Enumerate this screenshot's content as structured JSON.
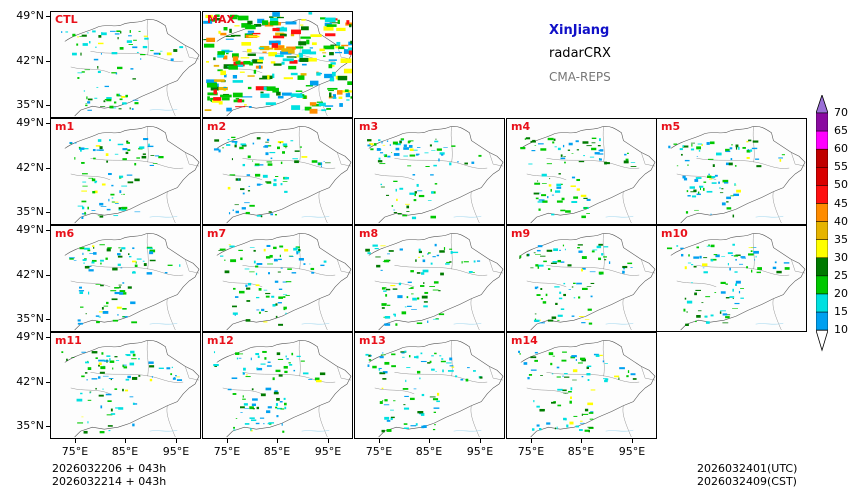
{
  "titles": {
    "region": "XinJiang",
    "variable": "radarCRX",
    "model": "CMA-REPS"
  },
  "panels": [
    {
      "label": "CTL"
    },
    {
      "label": "MAX"
    },
    {
      "label": "m1"
    },
    {
      "label": "m2"
    },
    {
      "label": "m3"
    },
    {
      "label": "m4"
    },
    {
      "label": "m5"
    },
    {
      "label": "m6"
    },
    {
      "label": "m7"
    },
    {
      "label": "m8"
    },
    {
      "label": "m9"
    },
    {
      "label": "m10"
    },
    {
      "label": "m11"
    },
    {
      "label": "m12"
    },
    {
      "label": "m13"
    },
    {
      "label": "m14"
    }
  ],
  "axes": {
    "lat_labels": [
      "49°N",
      "42°N",
      "35°N"
    ],
    "lon_labels": [
      "75°E",
      "85°E",
      "95°E"
    ]
  },
  "footer": {
    "init_utc": "2026032206  +  043h",
    "init_cst": "2026032214  +  043h",
    "valid_utc": "2026032401(UTC)",
    "valid_cst": "2026032409(CST)"
  },
  "colorbar": {
    "levels": [
      "70",
      "65",
      "60",
      "55",
      "50",
      "45",
      "40",
      "35",
      "30",
      "25",
      "20",
      "15",
      "10"
    ],
    "colors": [
      "#9a6fd6",
      "#8a0aa0",
      "#ff00ff",
      "#c00000",
      "#d90000",
      "#ff1010",
      "#ff8c00",
      "#e6b400",
      "#ffff00",
      "#007a00",
      "#00c800",
      "#00e0e0",
      "#00a0f0",
      "#ffffff"
    ]
  }
}
